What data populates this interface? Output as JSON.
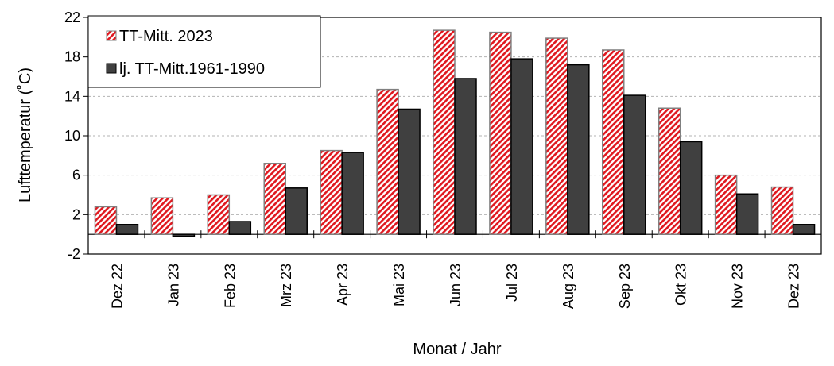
{
  "chart_data": {
    "type": "bar",
    "title": "",
    "xlabel": "Monat / Jahr",
    "ylabel": "Lufttemperatur (˚C)",
    "ylim": [
      -2,
      22
    ],
    "yticks": [
      "-2",
      "2",
      "6",
      "10",
      "14",
      "18",
      "22"
    ],
    "categories": [
      "Dez 22",
      "Jan 23",
      "Feb 23",
      "Mrz 23",
      "Apr 23",
      "Mai 23",
      "Jun 23",
      "Jul 23",
      "Aug 23",
      "Sep 23",
      "Okt 23",
      "Nov 23",
      "Dez 23"
    ],
    "series": [
      {
        "name": "TT-Mitt. 2023",
        "values": [
          2.8,
          3.7,
          4.0,
          7.2,
          8.5,
          14.7,
          20.7,
          20.5,
          19.9,
          18.7,
          12.8,
          6.0,
          4.8
        ]
      },
      {
        "name": "lj. TT-Mitt.1961-1990",
        "values": [
          1.0,
          -0.2,
          1.3,
          4.7,
          8.3,
          12.7,
          15.8,
          17.8,
          17.2,
          14.1,
          9.4,
          4.1,
          1.0
        ]
      }
    ],
    "grid": true,
    "legend_position": "top-left",
    "colors": {
      "series1_pattern": "#e0181f",
      "series1_background": "#ffffff",
      "series1_border": "#808080",
      "series2_fill": "#404040",
      "series2_border": "#000000",
      "grid": "#b3b3b3",
      "axis": "#000000"
    }
  }
}
